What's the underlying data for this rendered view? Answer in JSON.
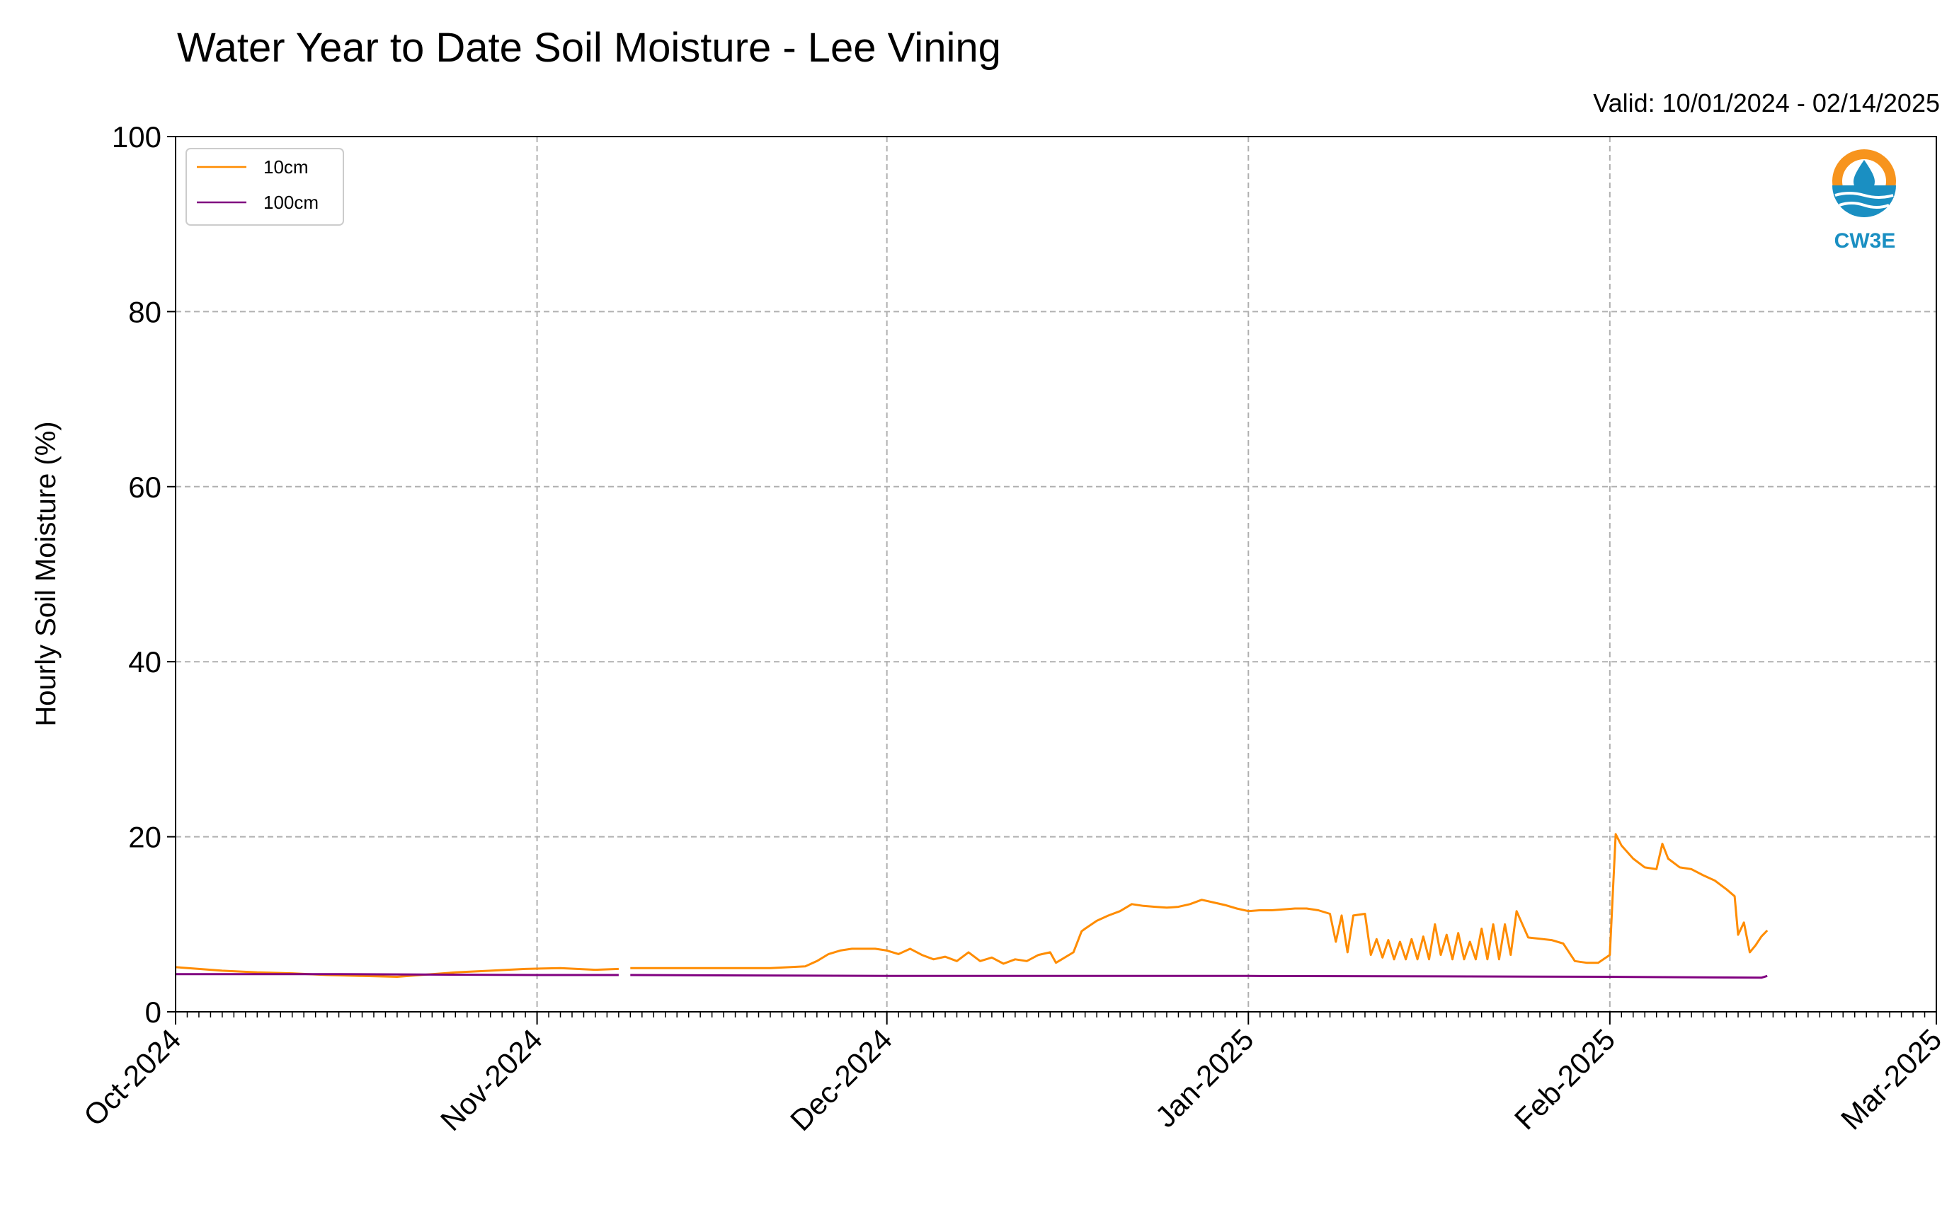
{
  "chart_data": {
    "type": "line",
    "title": "Water Year to Date Soil Moisture - Lee Vining",
    "subtitle": "Valid: 10/01/2024 - 02/14/2025",
    "ylabel": "Hourly Soil Moisture (%)",
    "xlabel": "",
    "ylim": [
      0,
      100
    ],
    "y_ticks": [
      0,
      20,
      40,
      60,
      80,
      100
    ],
    "x_range": [
      "2024-10-01",
      "2025-03-01"
    ],
    "x_ticks": [
      {
        "date": "2024-10-01",
        "label": "Oct-2024"
      },
      {
        "date": "2024-11-01",
        "label": "Nov-2024"
      },
      {
        "date": "2024-12-01",
        "label": "Dec-2024"
      },
      {
        "date": "2025-01-01",
        "label": "Jan-2025"
      },
      {
        "date": "2025-02-01",
        "label": "Feb-2025"
      },
      {
        "date": "2025-03-01",
        "label": "Mar-2025"
      }
    ],
    "grid": true,
    "legend_position": "top-left",
    "logo_text": "CW3E",
    "series": [
      {
        "name": "10cm",
        "color": "#ff8c00",
        "segments": [
          [
            [
              "2024-10-01",
              5.1
            ],
            [
              "2024-10-03",
              4.9
            ],
            [
              "2024-10-05",
              4.7
            ],
            [
              "2024-10-08",
              4.5
            ],
            [
              "2024-10-11",
              4.4
            ],
            [
              "2024-10-14",
              4.2
            ],
            [
              "2024-10-17",
              4.1
            ],
            [
              "2024-10-20",
              4.0
            ],
            [
              "2024-10-22",
              4.2
            ],
            [
              "2024-10-25",
              4.5
            ],
            [
              "2024-10-28",
              4.7
            ],
            [
              "2024-10-31",
              4.9
            ],
            [
              "2024-11-03",
              5.0
            ],
            [
              "2024-11-06",
              4.8
            ],
            [
              "2024-11-08",
              4.9
            ]
          ],
          [
            [
              "2024-11-09",
              5.0
            ],
            [
              "2024-11-12",
              5.0
            ],
            [
              "2024-11-15",
              5.0
            ],
            [
              "2024-11-18",
              5.0
            ],
            [
              "2024-11-21",
              5.0
            ],
            [
              "2024-11-24",
              5.2
            ],
            [
              "2024-11-25",
              5.8
            ],
            [
              "2024-11-26",
              6.6
            ],
            [
              "2024-11-27",
              7.0
            ],
            [
              "2024-11-28",
              7.2
            ],
            [
              "2024-11-30",
              7.2
            ],
            [
              "2024-12-01",
              7.0
            ],
            [
              "2024-12-02",
              6.6
            ],
            [
              "2024-12-03",
              7.2
            ],
            [
              "2024-12-04",
              6.5
            ],
            [
              "2024-12-05",
              6.0
            ],
            [
              "2024-12-06",
              6.3
            ],
            [
              "2024-12-07",
              5.8
            ],
            [
              "2024-12-08",
              6.8
            ],
            [
              "2024-12-09",
              5.8
            ],
            [
              "2024-12-10",
              6.2
            ],
            [
              "2024-12-11",
              5.5
            ],
            [
              "2024-12-12",
              6.0
            ],
            [
              "2024-12-13",
              5.8
            ],
            [
              "2024-12-14",
              6.5
            ],
            [
              "2024-12-15",
              6.8
            ],
            [
              "2024-12-15.5",
              5.6
            ],
            [
              "2024-12-16",
              6.0
            ],
            [
              "2024-12-17",
              6.8
            ],
            [
              "2024-12-17.7",
              9.2
            ],
            [
              "2024-12-18",
              9.5
            ],
            [
              "2024-12-19",
              10.4
            ],
            [
              "2024-12-20",
              11.0
            ],
            [
              "2024-12-21",
              11.5
            ],
            [
              "2024-12-22",
              12.3
            ],
            [
              "2024-12-23",
              12.1
            ],
            [
              "2024-12-24",
              12.0
            ],
            [
              "2024-12-25",
              11.9
            ],
            [
              "2024-12-26",
              12.0
            ],
            [
              "2024-12-27",
              12.3
            ],
            [
              "2024-12-28",
              12.8
            ],
            [
              "2024-12-29",
              12.5
            ],
            [
              "2024-12-30",
              12.2
            ],
            [
              "2024-12-31",
              11.8
            ],
            [
              "2025-01-01",
              11.5
            ],
            [
              "2025-01-02",
              11.6
            ],
            [
              "2025-01-03",
              11.6
            ],
            [
              "2025-01-04",
              11.7
            ],
            [
              "2025-01-05",
              11.8
            ],
            [
              "2025-01-06",
              11.8
            ],
            [
              "2025-01-07",
              11.6
            ],
            [
              "2025-01-08",
              11.2
            ],
            [
              "2025-01-08.5",
              8.0
            ],
            [
              "2025-01-09",
              11.0
            ],
            [
              "2025-01-09.5",
              6.8
            ],
            [
              "2025-01-10",
              11.0
            ],
            [
              "2025-01-11",
              11.2
            ],
            [
              "2025-01-11.5",
              6.5
            ],
            [
              "2025-01-12",
              8.3
            ],
            [
              "2025-01-12.5",
              6.2
            ],
            [
              "2025-01-13",
              8.2
            ],
            [
              "2025-01-13.5",
              6.0
            ],
            [
              "2025-01-14",
              8.0
            ],
            [
              "2025-01-14.5",
              6.0
            ],
            [
              "2025-01-15",
              8.3
            ],
            [
              "2025-01-15.5",
              6.0
            ],
            [
              "2025-01-16",
              8.6
            ],
            [
              "2025-01-16.5",
              6.0
            ],
            [
              "2025-01-17",
              10.0
            ],
            [
              "2025-01-17.5",
              6.5
            ],
            [
              "2025-01-18",
              8.8
            ],
            [
              "2025-01-18.5",
              6.0
            ],
            [
              "2025-01-19",
              9.0
            ],
            [
              "2025-01-19.5",
              6.0
            ],
            [
              "2025-01-20",
              8.0
            ],
            [
              "2025-01-20.5",
              6.0
            ],
            [
              "2025-01-21",
              9.5
            ],
            [
              "2025-01-21.5",
              6.0
            ],
            [
              "2025-01-22",
              10.0
            ],
            [
              "2025-01-22.5",
              6.0
            ],
            [
              "2025-01-23",
              10.0
            ],
            [
              "2025-01-23.5",
              6.5
            ],
            [
              "2025-01-24",
              11.5
            ],
            [
              "2025-01-25",
              8.5
            ],
            [
              "2025-01-27",
              8.2
            ],
            [
              "2025-01-28",
              7.8
            ],
            [
              "2025-01-29",
              5.8
            ],
            [
              "2025-01-30",
              5.6
            ],
            [
              "2025-01-31",
              5.6
            ],
            [
              "2025-02-01",
              6.5
            ],
            [
              "2025-02-01.5",
              20.3
            ],
            [
              "2025-02-02",
              19.0
            ],
            [
              "2025-02-03",
              17.5
            ],
            [
              "2025-02-04",
              16.5
            ],
            [
              "2025-02-05",
              16.3
            ],
            [
              "2025-02-05.5",
              19.2
            ],
            [
              "2025-02-06",
              17.5
            ],
            [
              "2025-02-07",
              16.5
            ],
            [
              "2025-02-08",
              16.3
            ],
            [
              "2025-02-09",
              15.6
            ],
            [
              "2025-02-10",
              15.0
            ],
            [
              "2025-02-11",
              14.0
            ],
            [
              "2025-02-11.7",
              13.2
            ],
            [
              "2025-02-12",
              8.8
            ],
            [
              "2025-02-12.5",
              10.2
            ],
            [
              "2025-02-13",
              6.8
            ],
            [
              "2025-02-13.5",
              7.6
            ],
            [
              "2025-02-14",
              8.6
            ],
            [
              "2025-02-14.5",
              9.3
            ]
          ]
        ]
      },
      {
        "name": "100cm",
        "color": "#800080",
        "segments": [
          [
            [
              "2024-10-01",
              4.3
            ],
            [
              "2024-10-15",
              4.3
            ],
            [
              "2024-11-01",
              4.2
            ],
            [
              "2024-11-08",
              4.2
            ]
          ],
          [
            [
              "2024-11-09",
              4.2
            ],
            [
              "2024-12-01",
              4.1
            ],
            [
              "2025-01-01",
              4.1
            ],
            [
              "2025-02-01",
              4.0
            ],
            [
              "2025-02-14",
              3.9
            ],
            [
              "2025-02-14.5",
              4.1
            ]
          ]
        ]
      }
    ]
  }
}
